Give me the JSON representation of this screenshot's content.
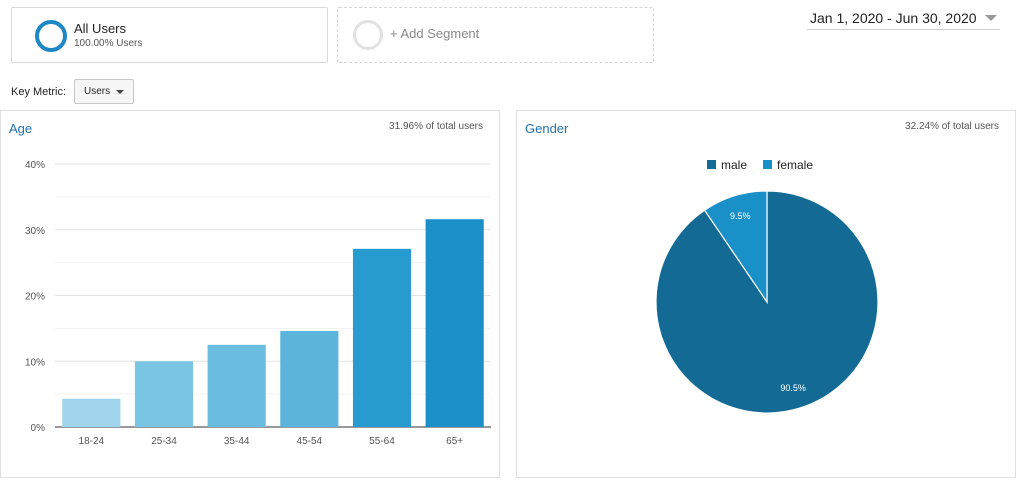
{
  "segments": {
    "active": {
      "name": "All Users",
      "share": "100.00% Users"
    },
    "add_label": "+ Add Segment"
  },
  "date_range": "Jan 1, 2020 - Jun 30, 2020",
  "key_metric": {
    "label": "Key Metric:",
    "value": "Users"
  },
  "colors": {
    "accent": "#1e88c7",
    "title_blue": "#1f6fb3",
    "male": "#136b95",
    "female": "#1a90c8"
  },
  "chart_data": [
    {
      "type": "bar",
      "title": "Age",
      "note": "31.96% of total users",
      "categories": [
        "18-24",
        "25-34",
        "35-44",
        "45-54",
        "55-64",
        "65+"
      ],
      "values": [
        4.3,
        10.0,
        12.5,
        14.6,
        27.1,
        31.6
      ],
      "bar_colors": [
        "#9fd4ec",
        "#7ac4e4",
        "#6bbddf",
        "#5cb3dc",
        "#279ad0",
        "#1b8fc7"
      ],
      "yticks": [
        "0%",
        "10%",
        "20%",
        "30%",
        "40%"
      ],
      "ylim": [
        0,
        40
      ],
      "grid": true
    },
    {
      "type": "pie",
      "title": "Gender",
      "note": "32.24% of total users",
      "legend_position": "top",
      "slices": [
        {
          "name": "male",
          "value": 90.5,
          "label": "90.5%",
          "color": "#136b95"
        },
        {
          "name": "female",
          "value": 9.5,
          "label": "9.5%",
          "color": "#1a90c8"
        }
      ]
    }
  ]
}
